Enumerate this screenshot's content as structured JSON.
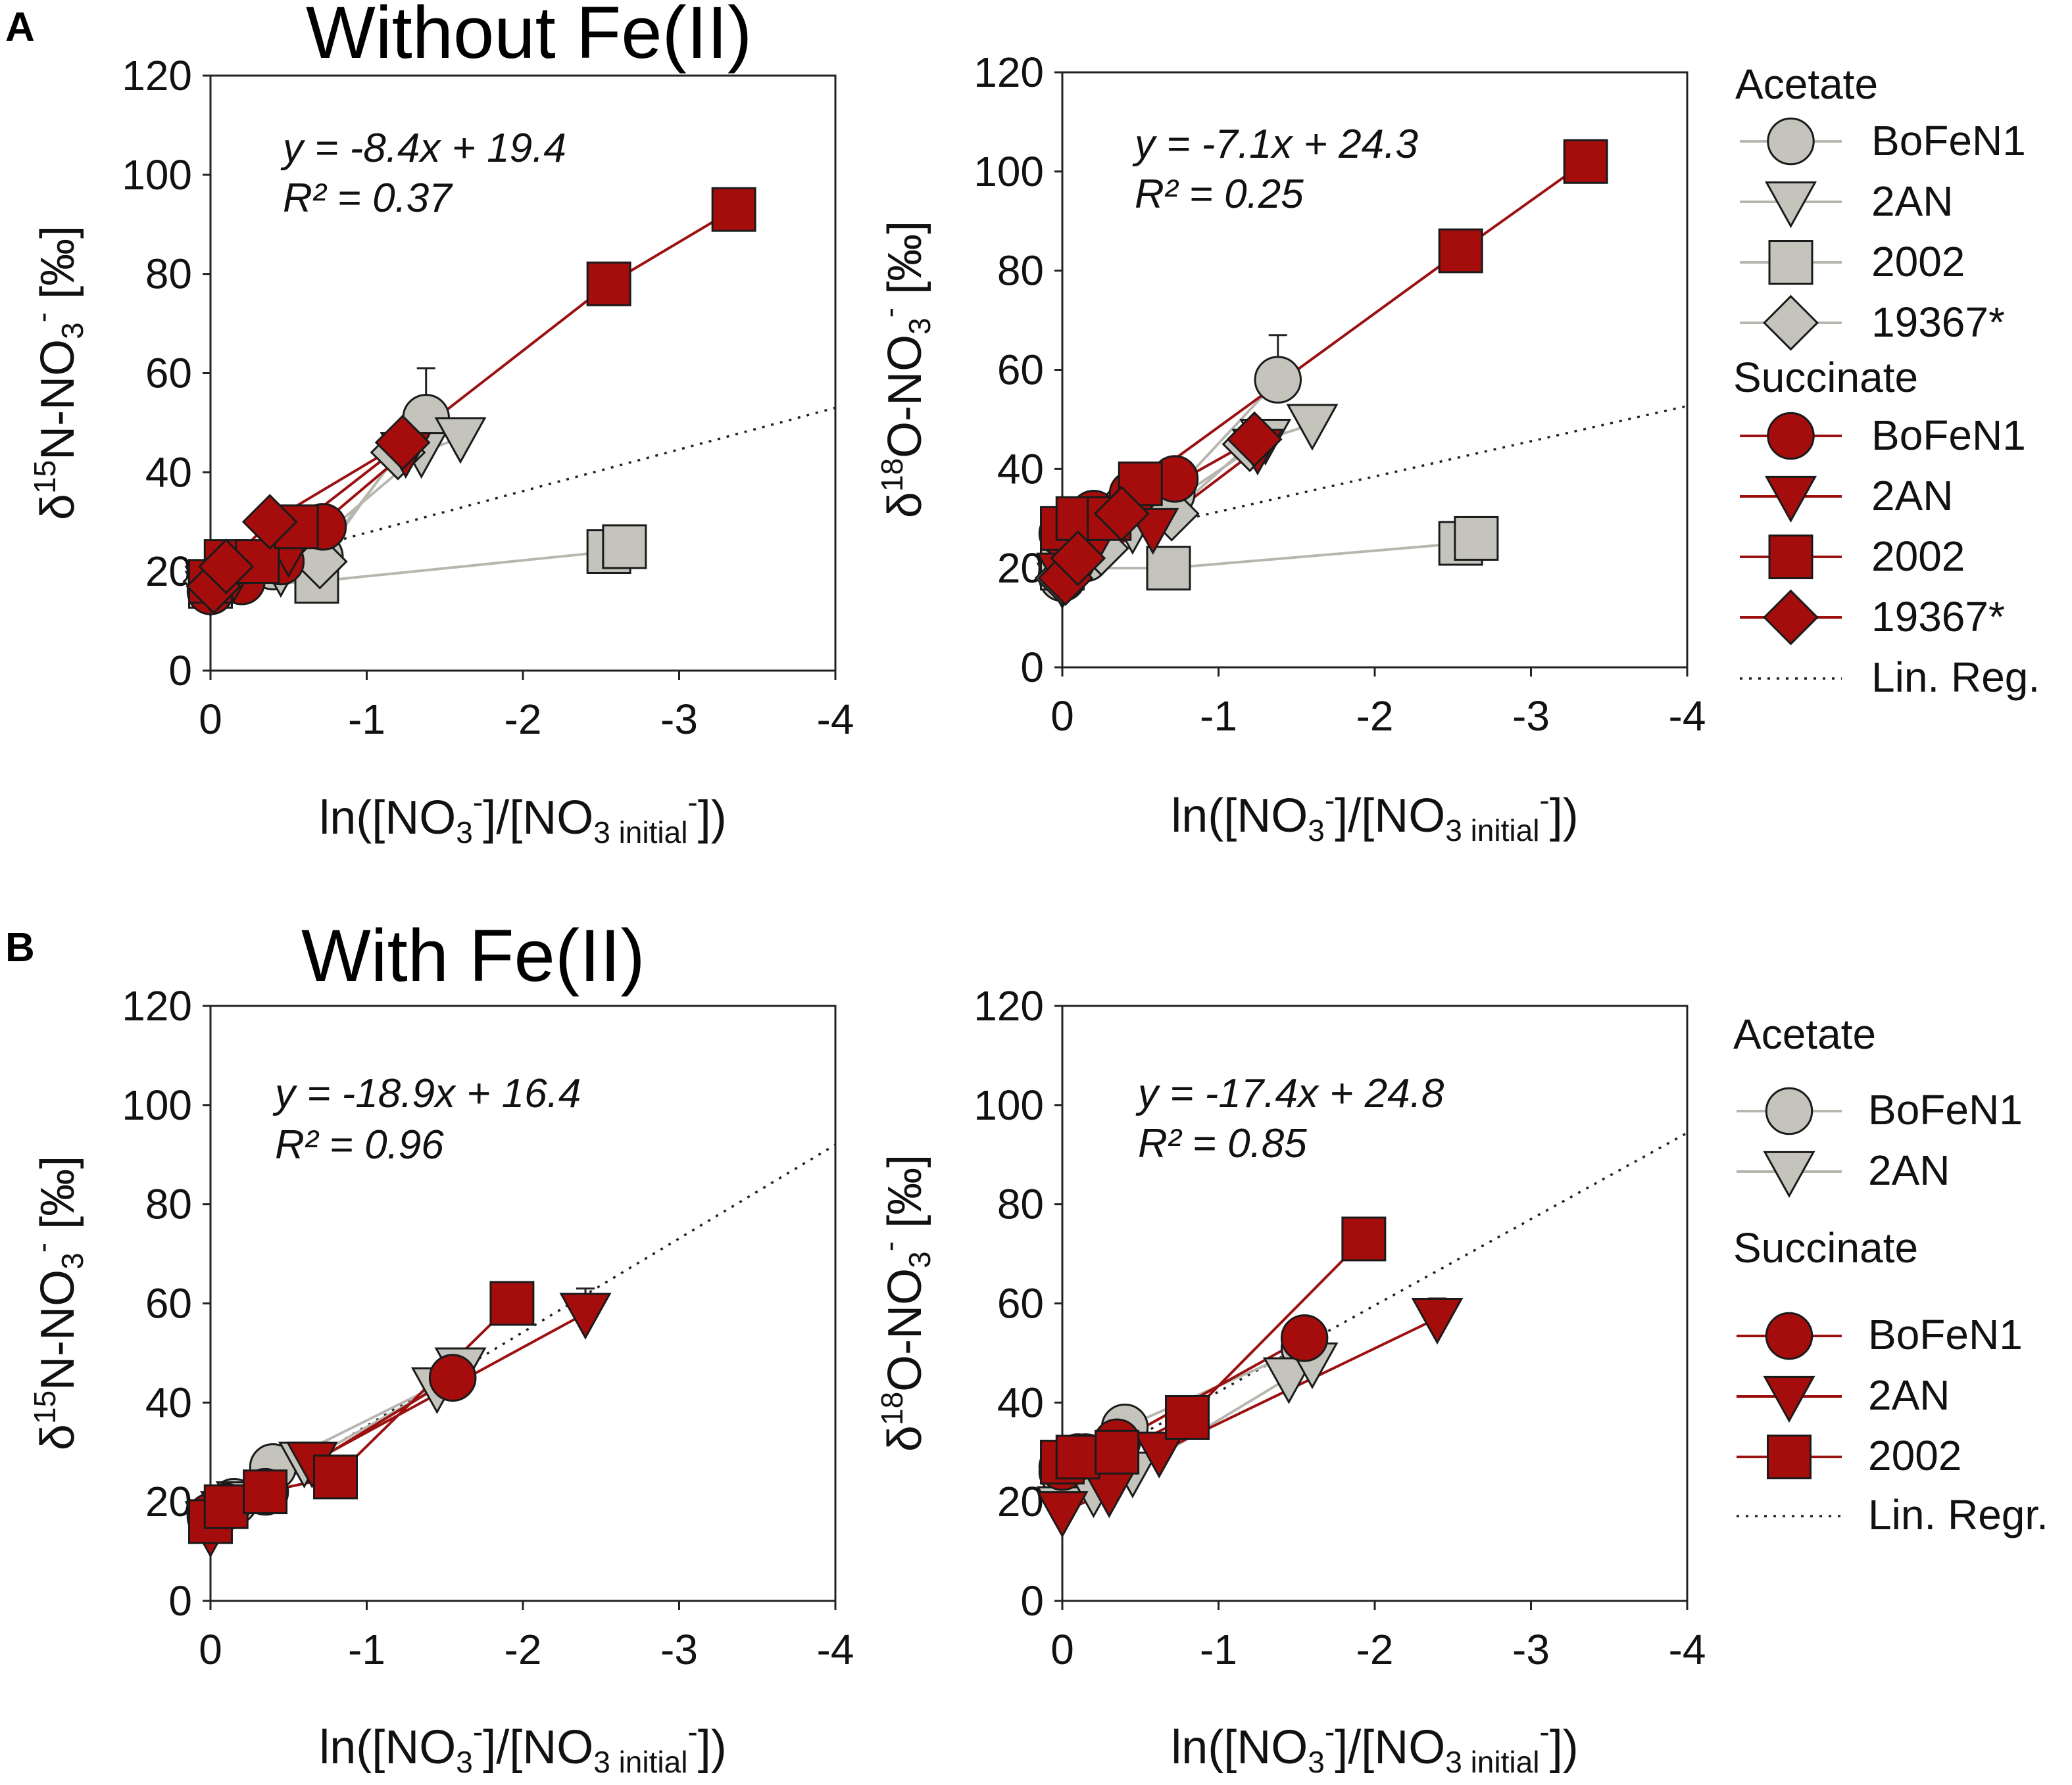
{
  "colors": {
    "acetate_fill": "#c4c4bc",
    "acetate_line": "#b7b7b0",
    "succinate_fill": "#a50d0d",
    "succinate_line": "#9b1010",
    "marker_edge": "#1a1a1a",
    "regression": "#222222"
  },
  "figure": {
    "panel_a_label": "A",
    "panel_b_label": "B",
    "title_a": "Without Fe(II)",
    "title_b": "With Fe(II)"
  },
  "legend_a": {
    "group1": "Acetate",
    "group2": "Succinate",
    "items1": [
      "BoFeN1",
      "2AN",
      "2002",
      "19367*"
    ],
    "items2": [
      "BoFeN1",
      "2AN",
      "2002",
      "19367*"
    ],
    "regression_label": "Lin. Reg."
  },
  "legend_b": {
    "group1": "Acetate",
    "group2": "Succinate",
    "items1": [
      "BoFeN1",
      "2AN"
    ],
    "items2": [
      "BoFeN1",
      "2AN",
      "2002"
    ],
    "regression_label": "Lin. Regr."
  },
  "chart_data": [
    {
      "id": "a_n",
      "type": "scatter",
      "title": "Without Fe(II)",
      "xlabel": "ln([NO3-]/[NO3- initial])",
      "ylabel": "δ15N-NO3- [‰]",
      "iso": "15N",
      "xlim": [
        0,
        -4
      ],
      "ylim": [
        0,
        120
      ],
      "xticks": [
        "0",
        "-1",
        "-2",
        "-3",
        "-4"
      ],
      "yticks": [
        "0",
        "20",
        "40",
        "60",
        "80",
        "100",
        "120"
      ],
      "equation": "y = -8.4x + 19.4",
      "r2": "R² = 0.37",
      "regression": {
        "slope": -8.4,
        "intercept": 19.4
      },
      "series": [
        {
          "name": "Acetate BoFeN1",
          "marker": "circle",
          "group": "acetate",
          "x": [
            0,
            -0.15,
            -0.4,
            -0.7,
            -1.38
          ],
          "y": [
            17,
            19,
            21,
            23,
            51
          ],
          "err": [
            null,
            null,
            null,
            null,
            10
          ]
        },
        {
          "name": "Acetate 2AN",
          "marker": "triangle",
          "group": "acetate",
          "x": [
            0,
            -0.12,
            -0.45,
            -1.35,
            -1.6
          ],
          "y": [
            16,
            18,
            20,
            44,
            47
          ]
        },
        {
          "name": "Acetate 2002",
          "marker": "square",
          "group": "acetate",
          "x": [
            0,
            -0.68,
            -2.55,
            -2.65
          ],
          "y": [
            17,
            18,
            24,
            25
          ]
        },
        {
          "name": "Acetate 19367*",
          "marker": "diamond",
          "group": "acetate",
          "x": [
            0,
            -0.25,
            -0.7,
            -1.2
          ],
          "y": [
            18,
            20,
            22,
            44
          ]
        },
        {
          "name": "Succinate BoFeN1",
          "marker": "circle",
          "group": "succinate",
          "x": [
            0,
            -0.2,
            -0.45,
            -0.72
          ],
          "y": [
            16,
            18,
            22,
            29
          ]
        },
        {
          "name": "Succinate 2AN",
          "marker": "triangle",
          "group": "succinate",
          "x": [
            0,
            -0.15,
            -0.5,
            -1.25
          ],
          "y": [
            17,
            19,
            24,
            44
          ]
        },
        {
          "name": "Succinate 2002",
          "marker": "square",
          "group": "succinate",
          "x": [
            0,
            -0.1,
            -0.3,
            -0.55,
            -2.55,
            -3.35
          ],
          "y": [
            18,
            22,
            22,
            29,
            78,
            93
          ]
        },
        {
          "name": "Succinate 19367*",
          "marker": "diamond",
          "group": "succinate",
          "x": [
            -0.02,
            -0.1,
            -0.38,
            -1.23
          ],
          "y": [
            17,
            21,
            30,
            46
          ]
        }
      ]
    },
    {
      "id": "a_o",
      "type": "scatter",
      "title": "",
      "xlabel": "ln([NO3-]/[NO3- initial])",
      "ylabel": "δ18O-NO3- [‰]",
      "iso": "18O",
      "xlim": [
        0,
        -4
      ],
      "ylim": [
        0,
        120
      ],
      "xticks": [
        "0",
        "-1",
        "-2",
        "-3",
        "-4"
      ],
      "yticks": [
        "0",
        "20",
        "40",
        "60",
        "80",
        "100",
        "120"
      ],
      "equation": "y = -7.1x + 24.3",
      "r2": "R² = 0.25",
      "regression": {
        "slope": -7.1,
        "intercept": 24.3
      },
      "series": [
        {
          "name": "Acetate BoFeN1",
          "marker": "circle",
          "group": "acetate",
          "x": [
            0,
            -0.15,
            -0.4,
            -0.7,
            -1.38
          ],
          "y": [
            18,
            22,
            32,
            35,
            58
          ],
          "err": [
            null,
            null,
            null,
            null,
            9
          ]
        },
        {
          "name": "Acetate 2AN",
          "marker": "triangle",
          "group": "acetate",
          "x": [
            0,
            -0.12,
            -0.45,
            -1.3,
            -1.6
          ],
          "y": [
            17,
            21,
            28,
            46,
            49
          ]
        },
        {
          "name": "Acetate 2002",
          "marker": "square",
          "group": "acetate",
          "x": [
            0,
            -0.68,
            -2.55,
            -2.65
          ],
          "y": [
            20,
            20,
            25,
            26
          ]
        },
        {
          "name": "Acetate 19367*",
          "marker": "diamond",
          "group": "acetate",
          "x": [
            0,
            -0.25,
            -0.7,
            -1.2
          ],
          "y": [
            18,
            24,
            31,
            45
          ]
        },
        {
          "name": "Succinate BoFeN1",
          "marker": "circle",
          "group": "succinate",
          "x": [
            0,
            -0.2,
            -0.45,
            -0.72
          ],
          "y": [
            27,
            31,
            35,
            38
          ]
        },
        {
          "name": "Succinate 2AN",
          "marker": "triangle",
          "group": "succinate",
          "x": [
            0,
            -0.15,
            -0.58,
            -1.25
          ],
          "y": [
            19,
            22,
            28,
            44
          ]
        },
        {
          "name": "Succinate 2002",
          "marker": "square",
          "group": "succinate",
          "x": [
            0,
            -0.1,
            -0.3,
            -0.5,
            -2.55,
            -3.35
          ],
          "y": [
            28,
            30,
            30,
            37,
            84,
            102
          ]
        },
        {
          "name": "Succinate 19367*",
          "marker": "diamond",
          "group": "succinate",
          "x": [
            -0.02,
            -0.1,
            -0.38,
            -1.23
          ],
          "y": [
            18,
            22,
            31,
            46
          ]
        }
      ]
    },
    {
      "id": "b_n",
      "type": "scatter",
      "title": "With Fe(II)",
      "xlabel": "ln([NO3-]/[NO3- initial])",
      "ylabel": "δ15N-NO3- [‰]",
      "iso": "15N",
      "xlim": [
        0,
        -4
      ],
      "ylim": [
        0,
        120
      ],
      "xticks": [
        "0",
        "-1",
        "-2",
        "-3",
        "-4"
      ],
      "yticks": [
        "0",
        "20",
        "40",
        "60",
        "80",
        "100",
        "120"
      ],
      "equation": "y = -18.9x + 16.4",
      "r2": "R² = 0.96",
      "regression": {
        "slope": -18.9,
        "intercept": 16.4
      },
      "series": [
        {
          "name": "Acetate BoFeN1",
          "marker": "circle",
          "group": "acetate",
          "x": [
            0,
            -0.15,
            -0.4,
            -1.55
          ],
          "y": [
            17,
            20,
            27,
            45
          ]
        },
        {
          "name": "Acetate 2AN",
          "marker": "triangle",
          "group": "acetate",
          "x": [
            0,
            -0.2,
            -0.6,
            -1.45,
            -1.6
          ],
          "y": [
            16,
            20,
            28,
            43,
            47
          ]
        },
        {
          "name": "Succinate BoFeN1",
          "marker": "circle",
          "group": "succinate",
          "x": [
            0,
            -0.1,
            -0.35,
            -1.55
          ],
          "y": [
            17,
            19,
            22,
            45
          ]
        },
        {
          "name": "Succinate 2AN",
          "marker": "triangle",
          "group": "succinate",
          "x": [
            0,
            -0.1,
            -0.65,
            -2.4
          ],
          "y": [
            14,
            18,
            28,
            58
          ],
          "err": [
            null,
            null,
            null,
            5
          ]
        },
        {
          "name": "Succinate 2002",
          "marker": "square",
          "group": "succinate",
          "x": [
            0,
            -0.1,
            -0.35,
            -0.8,
            -1.93
          ],
          "y": [
            16,
            19,
            22,
            25,
            60
          ]
        }
      ]
    },
    {
      "id": "b_o",
      "type": "scatter",
      "title": "",
      "xlabel": "ln([NO3-]/[NO3- initial])",
      "ylabel": "δ18O-NO3- [‰]",
      "iso": "18O",
      "xlim": [
        0,
        -4
      ],
      "ylim": [
        0,
        120
      ],
      "xticks": [
        "0",
        "-1",
        "-2",
        "-3",
        "-4"
      ],
      "yticks": [
        "0",
        "20",
        "40",
        "60",
        "80",
        "100",
        "120"
      ],
      "equation": "y = -17.4x + 24.8",
      "r2": "R²   = 0.85",
      "regression": {
        "slope": -17.4,
        "intercept": 24.8
      },
      "series": [
        {
          "name": "Acetate BoFeN1",
          "marker": "circle",
          "group": "acetate",
          "x": [
            0,
            -0.15,
            -0.4,
            -1.55
          ],
          "y": [
            26,
            29,
            35,
            51
          ]
        },
        {
          "name": "Acetate 2AN",
          "marker": "triangle",
          "group": "acetate",
          "x": [
            0,
            -0.2,
            -0.45,
            -1.45,
            -1.6
          ],
          "y": [
            19,
            22,
            26,
            45,
            48
          ]
        },
        {
          "name": "Succinate BoFeN1",
          "marker": "circle",
          "group": "succinate",
          "x": [
            0,
            -0.1,
            -0.35,
            -1.55
          ],
          "y": [
            27,
            29,
            32,
            53
          ]
        },
        {
          "name": "Succinate 2AN",
          "marker": "triangle",
          "group": "succinate",
          "x": [
            0,
            -0.3,
            -0.62,
            -2.4
          ],
          "y": [
            18,
            22,
            30,
            57
          ],
          "err": [
            null,
            null,
            null,
            4
          ]
        },
        {
          "name": "Succinate 2002",
          "marker": "square",
          "group": "succinate",
          "x": [
            0,
            -0.1,
            -0.35,
            -0.8,
            -1.93
          ],
          "y": [
            28,
            29,
            30,
            37,
            73
          ]
        }
      ]
    }
  ]
}
